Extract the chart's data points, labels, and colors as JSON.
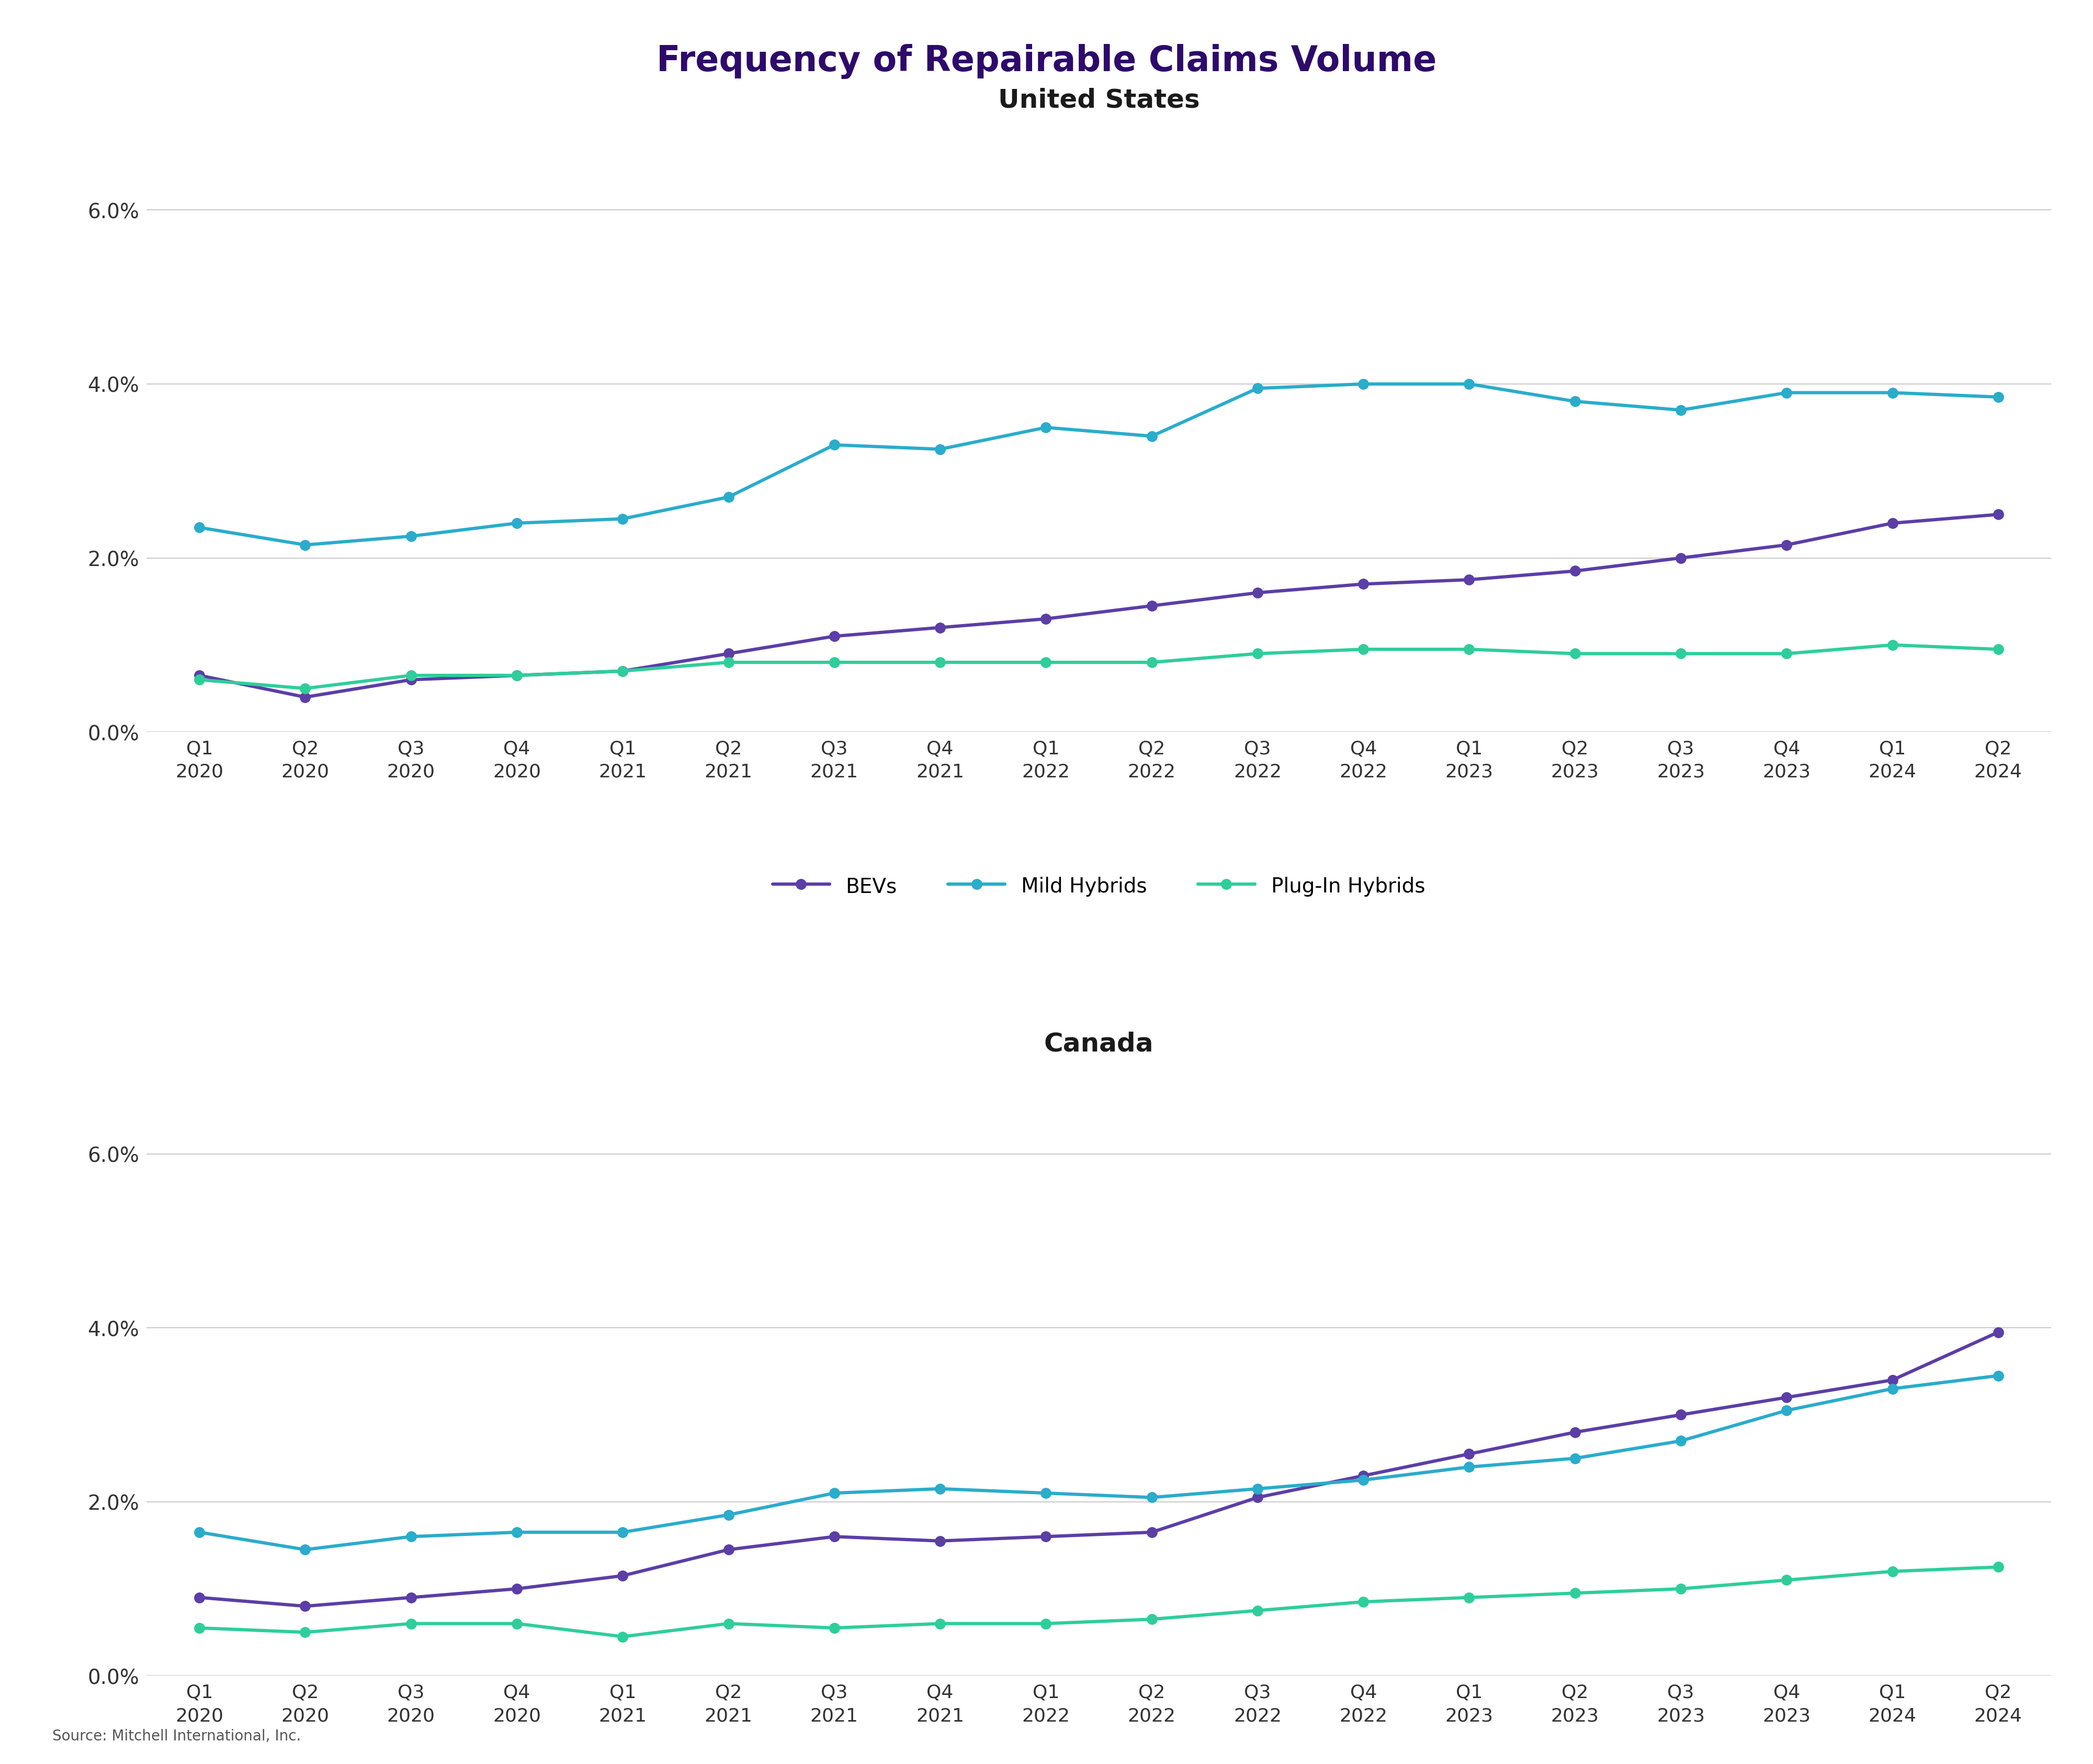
{
  "title": "Frequency of Repairable Claims Volume",
  "subtitle_us": "United States",
  "subtitle_ca": "Canada",
  "source": "Source: Mitchell International, Inc.",
  "x_labels": [
    "Q1\n2020",
    "Q2\n2020",
    "Q3\n2020",
    "Q4\n2020",
    "Q1\n2021",
    "Q2\n2021",
    "Q3\n2021",
    "Q4\n2021",
    "Q1\n2022",
    "Q2\n2022",
    "Q3\n2022",
    "Q4\n2022",
    "Q1\n2023",
    "Q2\n2023",
    "Q3\n2023",
    "Q4\n2023",
    "Q1\n2024",
    "Q2\n2024"
  ],
  "us": {
    "bevs": [
      0.0065,
      0.004,
      0.006,
      0.0065,
      0.007,
      0.009,
      0.011,
      0.012,
      0.013,
      0.0145,
      0.016,
      0.017,
      0.0175,
      0.0185,
      0.02,
      0.0215,
      0.024,
      0.025
    ],
    "mild_hybrids": [
      0.0235,
      0.0215,
      0.0225,
      0.024,
      0.0245,
      0.027,
      0.033,
      0.0325,
      0.035,
      0.034,
      0.0395,
      0.04,
      0.04,
      0.038,
      0.037,
      0.039,
      0.039,
      0.0385
    ],
    "plug_hybrids": [
      0.006,
      0.005,
      0.0065,
      0.0065,
      0.007,
      0.008,
      0.008,
      0.008,
      0.008,
      0.008,
      0.009,
      0.0095,
      0.0095,
      0.009,
      0.009,
      0.009,
      0.01,
      0.0095
    ]
  },
  "ca": {
    "bevs": [
      0.009,
      0.008,
      0.009,
      0.01,
      0.0115,
      0.0145,
      0.016,
      0.0155,
      0.016,
      0.0165,
      0.0205,
      0.023,
      0.0255,
      0.028,
      0.03,
      0.032,
      0.034,
      0.0395
    ],
    "mild_hybrids": [
      0.0165,
      0.0145,
      0.016,
      0.0165,
      0.0165,
      0.0185,
      0.021,
      0.0215,
      0.021,
      0.0205,
      0.0215,
      0.0225,
      0.024,
      0.025,
      0.027,
      0.0305,
      0.033,
      0.0345
    ],
    "plug_hybrids": [
      0.0055,
      0.005,
      0.006,
      0.006,
      0.0045,
      0.006,
      0.0055,
      0.006,
      0.006,
      0.0065,
      0.0075,
      0.0085,
      0.009,
      0.0095,
      0.01,
      0.011,
      0.012,
      0.0125
    ]
  },
  "colors": {
    "bevs": "#5B3EA6",
    "mild_hybrids": "#2AACCB",
    "plug_hybrids": "#2ECE9A"
  },
  "line_width": 4.5,
  "marker_size": 14,
  "title_color": "#2D0A6B",
  "subtitle_color": "#1a1a1a",
  "tick_color": "#333333",
  "grid_color": "#CCCCCC",
  "ylim": [
    0.0,
    0.07
  ],
  "yticks": [
    0.0,
    0.02,
    0.04,
    0.06
  ],
  "ytick_labels": [
    "0.0%",
    "2.0%",
    "4.0%",
    "6.0%"
  ]
}
